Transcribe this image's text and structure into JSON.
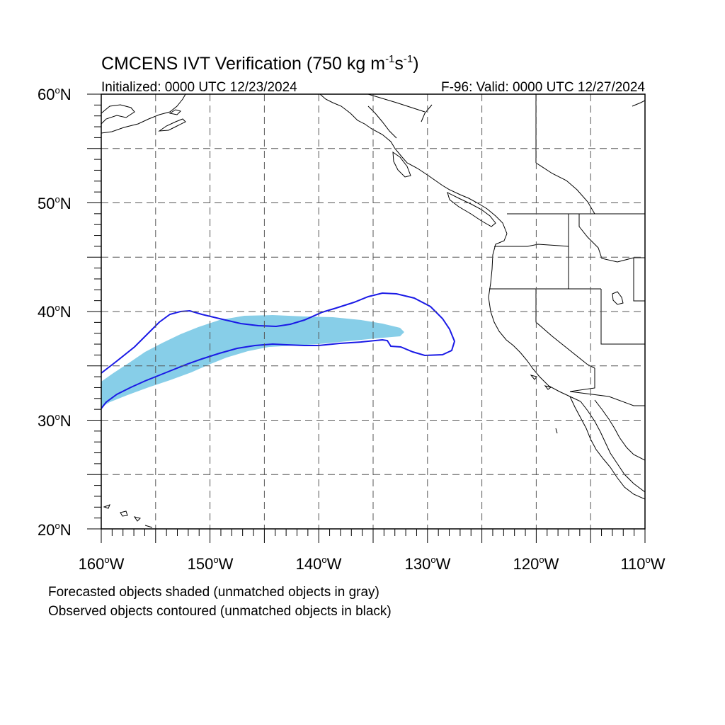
{
  "title": {
    "main_prefix": "CMCENS IVT Verification (750 kg m",
    "sup1": "-1",
    "mid": "s",
    "sup2": "-1",
    "suffix": ")"
  },
  "subtitle_left": "Initialized: 0000 UTC 12/23/2024",
  "subtitle_right": "F-96: Valid: 0000 UTC 12/27/2024",
  "lat_labels": [
    {
      "deg": "60",
      "unit": "o",
      "hemi": "N"
    },
    {
      "deg": "50",
      "unit": "o",
      "hemi": "N"
    },
    {
      "deg": "40",
      "unit": "o",
      "hemi": "N"
    },
    {
      "deg": "30",
      "unit": "o",
      "hemi": "N"
    },
    {
      "deg": "20",
      "unit": "o",
      "hemi": "N"
    }
  ],
  "lon_labels": [
    {
      "deg": "160",
      "unit": "o",
      "hemi": "W"
    },
    {
      "deg": "150",
      "unit": "o",
      "hemi": "W"
    },
    {
      "deg": "140",
      "unit": "o",
      "hemi": "W"
    },
    {
      "deg": "130",
      "unit": "o",
      "hemi": "W"
    },
    {
      "deg": "120",
      "unit": "o",
      "hemi": "W"
    },
    {
      "deg": "110",
      "unit": "o",
      "hemi": "W"
    }
  ],
  "caption_line1": "Forecasted objects shaded (unmatched objects in gray)",
  "caption_line2": "Observed objects contoured (unmatched objects in black)",
  "colors": {
    "forecast_fill": "#87CEE8",
    "observed_contour": "#1A1AE6",
    "coastline": "#000000",
    "grid": "#555555"
  },
  "map_extent": {
    "lon_min": -160,
    "lon_max": -110,
    "lat_min": 20,
    "lat_max": 60
  },
  "grid_style": "dashed, every 5 degrees"
}
